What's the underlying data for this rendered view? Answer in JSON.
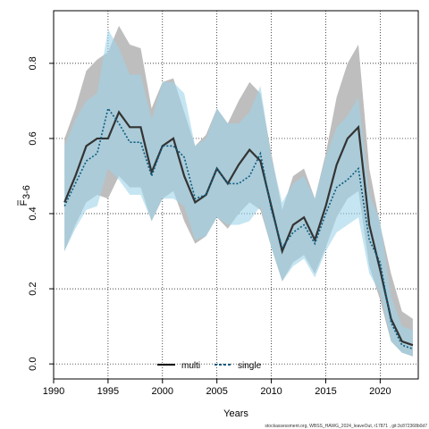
{
  "chart_data": {
    "type": "line",
    "xlabel": "Years",
    "ylabel_main": "F",
    "ylabel_sub": "3-6",
    "xlim": [
      1990,
      2023.5
    ],
    "ylim": [
      -0.04,
      0.94
    ],
    "x_ticks": [
      1990,
      1995,
      2000,
      2005,
      2010,
      2015,
      2020
    ],
    "y_ticks": [
      0.0,
      0.2,
      0.4,
      0.6,
      0.8
    ],
    "y_tick_labels": [
      "0.0",
      "0.2",
      "0.4",
      "0.6",
      "0.8"
    ],
    "grid": true,
    "legend_position": "bottom-center",
    "footer": "stockassessment.org, WBSS_HAWG_2024_leaveOut, r17871 , git:3c872368b0d7",
    "x": [
      1991,
      1992,
      1993,
      1994,
      1995,
      1996,
      1997,
      1998,
      1999,
      2000,
      2001,
      2002,
      2003,
      2004,
      2005,
      2006,
      2007,
      2008,
      2009,
      2010,
      2011,
      2012,
      2013,
      2014,
      2015,
      2016,
      2017,
      2018,
      2019,
      2020,
      2021,
      2022,
      2023
    ],
    "series": [
      {
        "name": "multi",
        "color": "#333333",
        "band_color": "#bebebe",
        "line_style": "solid",
        "values": [
          0.43,
          0.5,
          0.58,
          0.6,
          0.6,
          0.67,
          0.63,
          0.63,
          0.51,
          0.58,
          0.6,
          0.5,
          0.43,
          0.45,
          0.52,
          0.48,
          0.53,
          0.57,
          0.54,
          0.42,
          0.3,
          0.37,
          0.39,
          0.33,
          0.42,
          0.53,
          0.6,
          0.63,
          0.37,
          0.25,
          0.12,
          0.06,
          0.05
        ],
        "upper": [
          0.6,
          0.68,
          0.78,
          0.81,
          0.83,
          0.9,
          0.85,
          0.84,
          0.68,
          0.75,
          0.76,
          0.67,
          0.58,
          0.61,
          0.68,
          0.64,
          0.7,
          0.75,
          0.72,
          0.56,
          0.41,
          0.5,
          0.52,
          0.44,
          0.56,
          0.71,
          0.8,
          0.85,
          0.52,
          0.37,
          0.24,
          0.14,
          0.12
        ],
        "lower": [
          0.3,
          0.37,
          0.43,
          0.45,
          0.44,
          0.5,
          0.47,
          0.47,
          0.38,
          0.44,
          0.46,
          0.38,
          0.32,
          0.34,
          0.39,
          0.36,
          0.4,
          0.43,
          0.41,
          0.31,
          0.22,
          0.27,
          0.29,
          0.24,
          0.31,
          0.39,
          0.44,
          0.46,
          0.26,
          0.17,
          0.06,
          0.03,
          0.02
        ]
      },
      {
        "name": "single",
        "color": "#0b5c80",
        "band_color": "#9fd3ea",
        "line_style": "dashed",
        "values": [
          0.42,
          0.48,
          0.54,
          0.56,
          0.68,
          0.64,
          0.59,
          0.59,
          0.5,
          0.58,
          0.58,
          0.55,
          0.44,
          0.45,
          0.52,
          0.48,
          0.48,
          0.5,
          0.56,
          0.41,
          0.31,
          0.35,
          0.37,
          0.32,
          0.4,
          0.47,
          0.49,
          0.52,
          0.33,
          0.27,
          0.11,
          0.05,
          0.04
        ],
        "upper": [
          0.58,
          0.65,
          0.7,
          0.72,
          0.89,
          0.84,
          0.77,
          0.77,
          0.65,
          0.75,
          0.75,
          0.72,
          0.58,
          0.6,
          0.68,
          0.64,
          0.64,
          0.67,
          0.74,
          0.55,
          0.43,
          0.48,
          0.5,
          0.44,
          0.55,
          0.63,
          0.66,
          0.71,
          0.45,
          0.38,
          0.18,
          0.1,
          0.09
        ],
        "lower": [
          0.3,
          0.36,
          0.41,
          0.42,
          0.52,
          0.49,
          0.45,
          0.45,
          0.38,
          0.44,
          0.44,
          0.42,
          0.33,
          0.34,
          0.39,
          0.37,
          0.37,
          0.38,
          0.42,
          0.31,
          0.22,
          0.26,
          0.28,
          0.23,
          0.3,
          0.35,
          0.37,
          0.39,
          0.24,
          0.19,
          0.06,
          0.03,
          0.02
        ]
      }
    ]
  }
}
